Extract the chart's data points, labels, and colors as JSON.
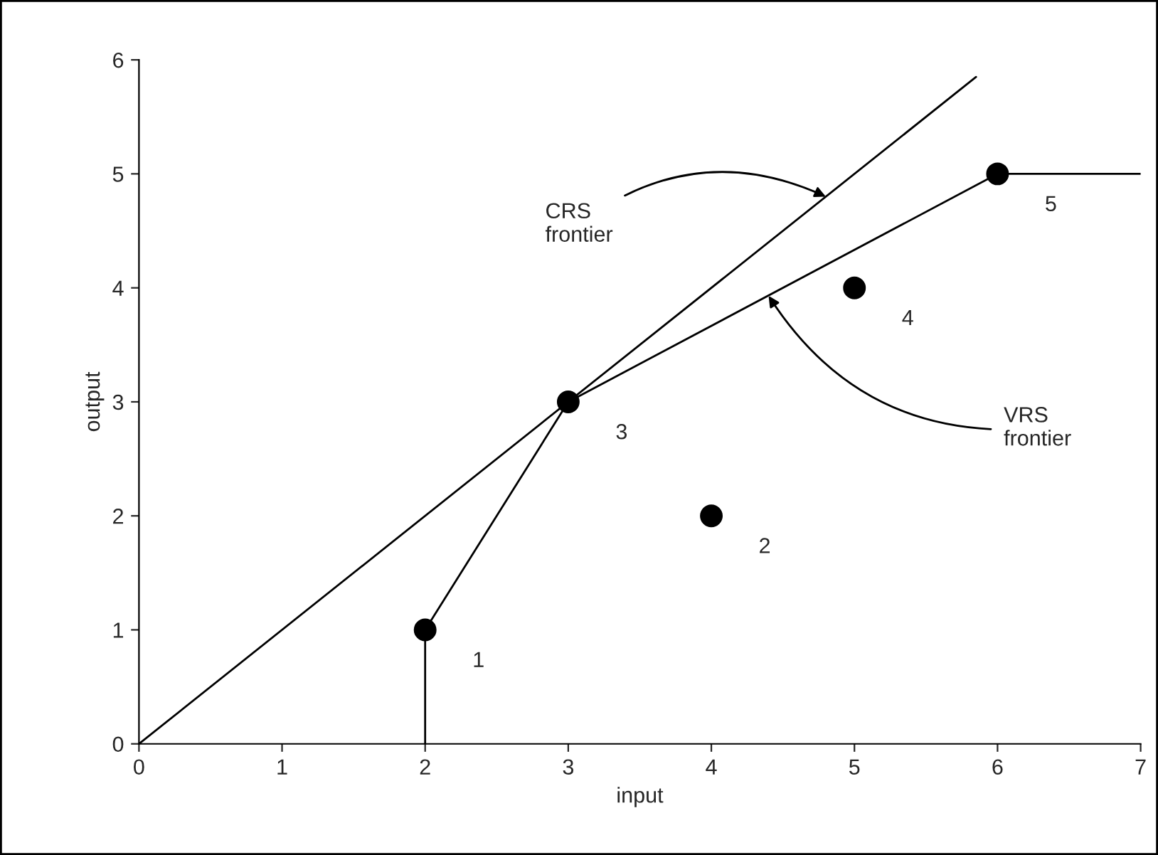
{
  "chart_data": {
    "type": "scatter",
    "xlabel": "input",
    "ylabel": "output",
    "xlim": [
      0,
      7
    ],
    "ylim": [
      0,
      6
    ],
    "xticks": [
      0,
      1,
      2,
      3,
      4,
      5,
      6,
      7
    ],
    "yticks": [
      0,
      1,
      2,
      3,
      4,
      5,
      6
    ],
    "grid": false,
    "legend": false,
    "series": [
      {
        "color": "#000000",
        "marker": "circle",
        "x": [
          2,
          4,
          3,
          5,
          6
        ],
        "values": [
          1,
          2,
          3,
          4,
          5
        ]
      },
      {
        "type": "line",
        "color": "#000000",
        "marker": "none",
        "line_style": "solid",
        "x": [
          0,
          5.85
        ],
        "values": [
          0,
          5.85
        ]
      },
      {
        "type": "line",
        "color": "#000000",
        "marker": "none",
        "line_style": "solid",
        "x": [
          2,
          2,
          3,
          6,
          7
        ],
        "values": [
          0,
          1,
          3,
          5,
          5
        ]
      }
    ],
    "annotations": [
      "1",
      "2",
      "3",
      "4",
      "5",
      {
        "text": "CRS\nfrontier",
        "x": 4.8,
        "y": 4.8
      },
      {
        "text": "VRS\nfrontier",
        "x": 4.4,
        "y": 3.93
      }
    ]
  }
}
